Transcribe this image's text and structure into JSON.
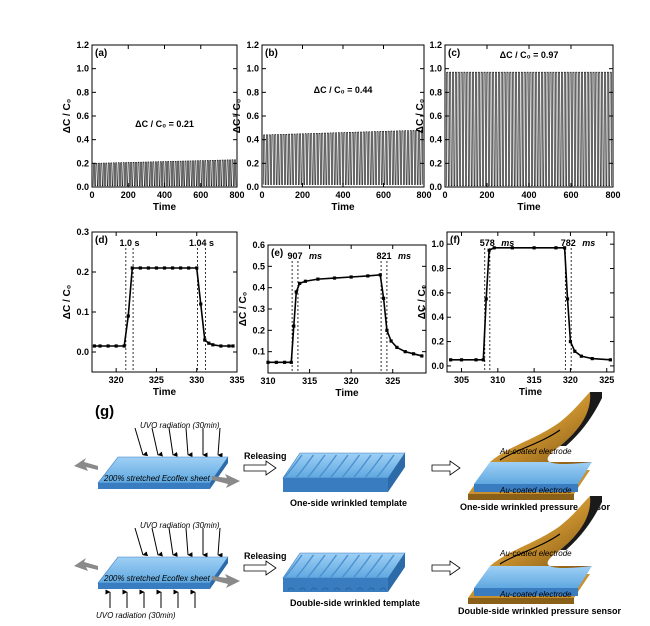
{
  "figure_label": "(g)",
  "chart_data": [
    {
      "id": "a",
      "type": "line",
      "panel_label": "(a)",
      "ylabel": "ΔC / C₀",
      "xlabel": "Time",
      "xlim": [
        0,
        800
      ],
      "ylim": [
        0,
        1.2
      ],
      "xticks": [
        0,
        200,
        400,
        600,
        800
      ],
      "yticks": [
        0.0,
        0.2,
        0.4,
        0.6,
        0.8,
        1.0,
        1.2
      ],
      "annotation": "ΔC / C₀ = 0.21",
      "pattern": "periodic",
      "cycles": 58,
      "min": 0.01,
      "max_start": 0.2,
      "max_end": 0.23
    },
    {
      "id": "b",
      "type": "line",
      "panel_label": "(b)",
      "ylabel": "ΔC / C₀",
      "xlabel": "Time",
      "xlim": [
        0,
        800
      ],
      "ylim": [
        0,
        1.2
      ],
      "xticks": [
        0,
        200,
        400,
        600,
        800
      ],
      "yticks": [
        0.0,
        0.2,
        0.4,
        0.6,
        0.8,
        1.0,
        1.2
      ],
      "annotation": "ΔC / C₀ = 0.44",
      "pattern": "periodic",
      "cycles": 58,
      "min": 0.02,
      "max_start": 0.44,
      "max_end": 0.48
    },
    {
      "id": "c",
      "type": "line",
      "panel_label": "(c)",
      "ylabel": "ΔC / C₀",
      "xlabel": "Time",
      "xlim": [
        0,
        800
      ],
      "ylim": [
        0,
        1.2
      ],
      "xticks": [
        0,
        200,
        400,
        600,
        800
      ],
      "yticks": [
        0.0,
        0.2,
        0.4,
        0.6,
        0.8,
        1.0,
        1.2
      ],
      "annotation": "ΔC / C₀ = 0.97",
      "pattern": "periodic",
      "cycles": 58,
      "min": 0.01,
      "max_start": 0.97,
      "max_end": 0.97
    },
    {
      "id": "d",
      "type": "line",
      "panel_label": "(d)",
      "ylabel": "ΔC / C₀",
      "xlabel": "Time",
      "xlim": [
        317,
        335
      ],
      "ylim": [
        -0.05,
        0.3
      ],
      "xticks": [
        320,
        325,
        330,
        335
      ],
      "yticks": [
        0.0,
        0.1,
        0.2,
        0.3
      ],
      "pattern": "step",
      "points": [
        [
          317.3,
          0.015
        ],
        [
          318,
          0.015
        ],
        [
          319,
          0.015
        ],
        [
          320,
          0.015
        ],
        [
          321,
          0.015
        ],
        [
          321.5,
          0.09
        ],
        [
          322,
          0.21
        ],
        [
          323,
          0.21
        ],
        [
          324,
          0.21
        ],
        [
          325,
          0.21
        ],
        [
          326,
          0.21
        ],
        [
          327,
          0.21
        ],
        [
          328,
          0.21
        ],
        [
          329,
          0.21
        ],
        [
          330,
          0.21
        ],
        [
          330.5,
          0.12
        ],
        [
          331,
          0.03
        ],
        [
          331.5,
          0.022
        ],
        [
          332,
          0.018
        ],
        [
          333,
          0.015
        ],
        [
          334,
          0.015
        ],
        [
          334.5,
          0.015
        ]
      ],
      "guides": [
        321.2,
        322.1,
        330.1,
        331.1
      ],
      "response_label": "1.0 s",
      "recovery_label": "1.04 s"
    },
    {
      "id": "e",
      "type": "line",
      "panel_label": "(e)",
      "ylabel": "ΔC / C₀",
      "xlabel": "Time",
      "xlim": [
        310,
        329
      ],
      "ylim": [
        0,
        0.6
      ],
      "xticks": [
        310,
        315,
        320,
        325
      ],
      "yticks": [
        0.1,
        0.2,
        0.3,
        0.4,
        0.5,
        0.6
      ],
      "pattern": "step",
      "points": [
        [
          310,
          0.05
        ],
        [
          311,
          0.05
        ],
        [
          312,
          0.05
        ],
        [
          312.8,
          0.05
        ],
        [
          313.1,
          0.22
        ],
        [
          313.4,
          0.38
        ],
        [
          313.8,
          0.42
        ],
        [
          314.5,
          0.43
        ],
        [
          316,
          0.44
        ],
        [
          318,
          0.445
        ],
        [
          320,
          0.45
        ],
        [
          322,
          0.455
        ],
        [
          323.5,
          0.46
        ],
        [
          323.9,
          0.35
        ],
        [
          324.3,
          0.2
        ],
        [
          324.8,
          0.15
        ],
        [
          325.5,
          0.12
        ],
        [
          326.5,
          0.1
        ],
        [
          327.5,
          0.09
        ],
        [
          328.5,
          0.08
        ]
      ],
      "guides": [
        312.9,
        313.6,
        323.6,
        324.3
      ],
      "response_label": "907",
      "recovery_label": "821",
      "unit_label": "ms"
    },
    {
      "id": "f",
      "type": "line",
      "panel_label": "(f)",
      "ylabel": "ΔC / C₀",
      "xlabel": "Time",
      "xlim": [
        303,
        326
      ],
      "ylim": [
        -0.05,
        1.1
      ],
      "xticks": [
        305,
        310,
        315,
        320,
        325
      ],
      "yticks": [
        0.0,
        0.2,
        0.4,
        0.6,
        0.8,
        1.0
      ],
      "pattern": "step",
      "points": [
        [
          303.5,
          0.05
        ],
        [
          305,
          0.05
        ],
        [
          307,
          0.05
        ],
        [
          308,
          0.05
        ],
        [
          308.4,
          0.55
        ],
        [
          308.8,
          0.95
        ],
        [
          309.5,
          0.97
        ],
        [
          312,
          0.97
        ],
        [
          315,
          0.97
        ],
        [
          318,
          0.97
        ],
        [
          319.2,
          0.97
        ],
        [
          319.6,
          0.55
        ],
        [
          320,
          0.2
        ],
        [
          320.6,
          0.12
        ],
        [
          321.5,
          0.08
        ],
        [
          323,
          0.06
        ],
        [
          325.5,
          0.05
        ]
      ],
      "guides": [
        308.2,
        308.9,
        319.3,
        320.1
      ],
      "response_label": "578",
      "recovery_label": "782",
      "unit_label": "ms"
    }
  ],
  "schematic": {
    "row1": {
      "uvo_top": "UVO radiation (30min)",
      "sheet_label": "200% stretched Ecoflex sheet",
      "releasing": "Releasing",
      "template_caption": "One-side wrinkled template",
      "electrode_top": "Au-coated electrode",
      "electrode_bottom": "Au-coated electrode",
      "sensor_caption": "One-side wrinkled pressure sensor"
    },
    "row2": {
      "uvo_top": "UVO radiation (30min)",
      "sheet_label": "200% stretched Ecoflex sheet",
      "uvo_bottom": "UVO radiation (30min)",
      "releasing": "Releasing",
      "template_caption": "Double-side wrinkled template",
      "electrode_top": "Au-coated electrode",
      "electrode_bottom": "Au-coated electrode",
      "sensor_caption": "Double-side wrinkled pressure sensor"
    },
    "colors": {
      "sheet_top": "#5fa8e0",
      "sheet_side": "#3a7cc0",
      "electrode": "#c8902e",
      "electrode_dark": "#1a1a1a",
      "arrow_grey": "#8a8a8a"
    }
  }
}
